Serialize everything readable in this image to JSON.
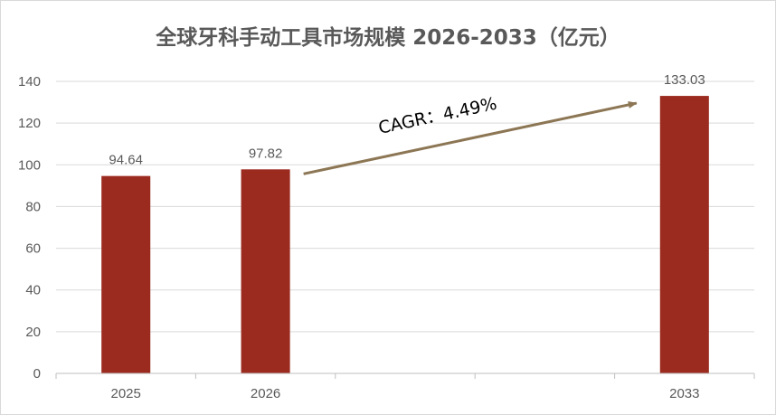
{
  "chart_data": {
    "type": "bar",
    "title": "全球牙科手动工具市场规模 2026-2033（亿元）",
    "categories": [
      "2025",
      "2026",
      "",
      "",
      "2033"
    ],
    "values": [
      94.64,
      97.82,
      null,
      null,
      133.03
    ],
    "data_labels": [
      "94.64",
      "97.82",
      "",
      "",
      "133.03"
    ],
    "yticks": [
      "0",
      "20",
      "40",
      "60",
      "80",
      "100",
      "120",
      "140"
    ],
    "ylim": [
      0,
      140
    ],
    "xlabel": "",
    "ylabel": "",
    "grid": true,
    "bar_color": "#9b2a1f",
    "annotation": {
      "text": "CAGR：4.49%",
      "from_category": 1,
      "to_category": 4,
      "arrow_color": "#8c7654"
    }
  }
}
